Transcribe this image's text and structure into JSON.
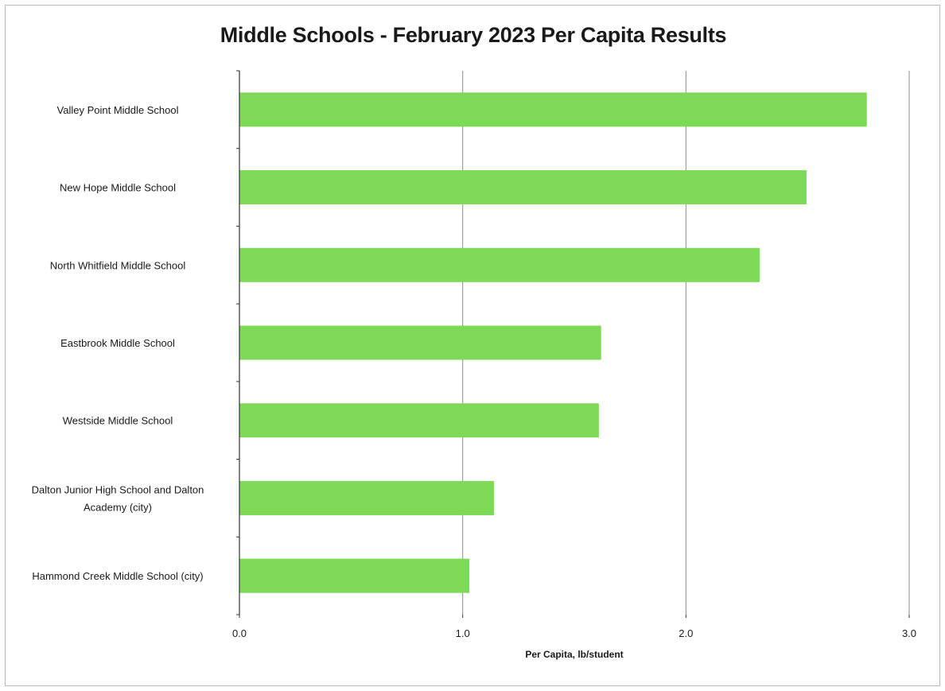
{
  "chart_data": {
    "type": "bar",
    "orientation": "horizontal",
    "title": "Middle Schools - February 2023 Per Capita Results",
    "xlabel": "Per Capita, lb/student",
    "ylabel": "",
    "categories": [
      "Valley Point Middle School",
      "New Hope Middle School",
      "North Whitfield Middle School",
      "Eastbrook Middle School",
      "Westside Middle School",
      "Dalton Junior High School and Dalton Academy (city)",
      "Hammond Creek Middle School (city)"
    ],
    "values": [
      2.81,
      2.54,
      2.33,
      1.62,
      1.61,
      1.14,
      1.03
    ],
    "xlim": [
      0,
      3.0
    ],
    "xticks": [
      "0.0",
      "1.0",
      "2.0",
      "3.0"
    ],
    "grid": "vertical",
    "legend": "none",
    "bar_color": "#7ed957"
  }
}
